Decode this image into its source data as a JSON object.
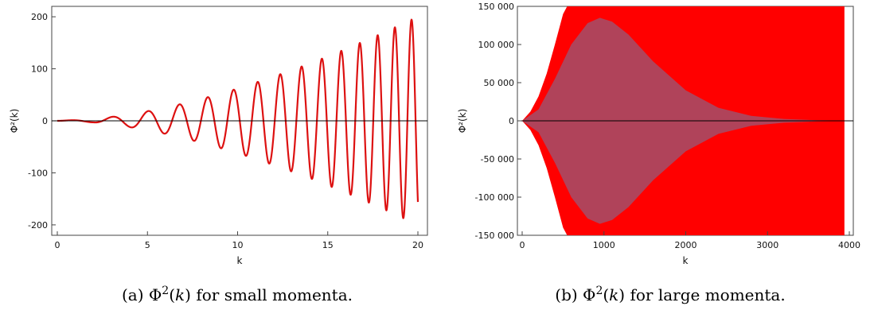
{
  "chart_data": [
    {
      "type": "line",
      "xlabel": "k",
      "ylabel": "Φ²(k)",
      "xlim": [
        0,
        20
      ],
      "ylim": [
        -220,
        220
      ],
      "x_ticks": [
        0,
        5,
        10,
        15,
        20
      ],
      "x_tick_labels": [
        "0",
        "5",
        "10",
        "15",
        "20"
      ],
      "y_ticks": [
        -200,
        -100,
        0,
        100,
        200
      ],
      "y_tick_labels": [
        "-200",
        "-100",
        "0",
        "100",
        "200"
      ],
      "series_color": "#dd1111",
      "baseline_color": "#000000",
      "x": [
        0,
        2,
        4,
        6,
        8,
        10,
        12,
        14,
        16,
        18,
        20
      ],
      "envelope": [
        0,
        3,
        12,
        25,
        42,
        62,
        85,
        110,
        138,
        168,
        200
      ],
      "description_note": ""
    },
    {
      "type": "area",
      "xlabel": "k",
      "ylabel": "Φ²(k)",
      "xlim": [
        0,
        4000
      ],
      "ylim": [
        -150000,
        150000
      ],
      "x_ticks": [
        0,
        1000,
        2000,
        3000,
        4000
      ],
      "x_tick_labels": [
        "0",
        "1000",
        "2000",
        "3000",
        "4000"
      ],
      "y_ticks": [
        -150000,
        -100000,
        -50000,
        0,
        50000,
        100000,
        150000
      ],
      "y_tick_labels": [
        "-150 000",
        "-100 000",
        "-50 000",
        "0",
        "50 000",
        "100 000",
        "150 000"
      ],
      "outer_color": "#ff0000",
      "inner_color": "#b0435a",
      "baseline_color": "#000000",
      "outer_x": [
        0,
        100,
        200,
        300,
        400,
        500,
        550,
        3940
      ],
      "outer_y": [
        0,
        12000,
        32000,
        62000,
        100000,
        140000,
        150000,
        150000
      ],
      "inner_x": [
        0,
        200,
        400,
        600,
        800,
        950,
        1100,
        1300,
        1600,
        2000,
        2400,
        2800,
        3200,
        3600,
        3940
      ],
      "inner_y": [
        0,
        15000,
        55000,
        100000,
        128000,
        135000,
        130000,
        113000,
        78000,
        40000,
        17000,
        6500,
        2500,
        800,
        300
      ]
    }
  ],
  "captions": [
    {
      "label": "(a) ",
      "symbol": "Φ",
      "sup": "2",
      "paren_open": "(",
      "var": "k",
      "paren_close": ")",
      "rest": " for small momenta."
    },
    {
      "label": "(b) ",
      "symbol": "Φ",
      "sup": "2",
      "paren_open": "(",
      "var": "k",
      "paren_close": ")",
      "rest": " for large momenta."
    }
  ]
}
